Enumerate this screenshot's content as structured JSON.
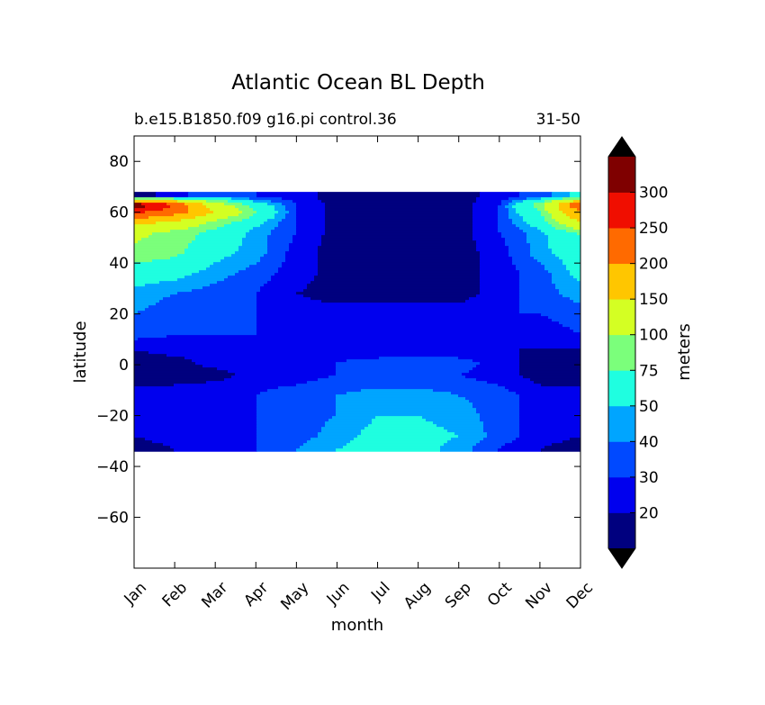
{
  "chart_data": {
    "type": "contourf",
    "title": "Atlantic Ocean BL Depth",
    "subtitle_left": "b.e15.B1850.f09 g16.pi control.36",
    "subtitle_right": "31-50",
    "xlabel": "month",
    "ylabel": "latitude",
    "x": [
      "Jan",
      "Feb",
      "Mar",
      "Apr",
      "May",
      "Jun",
      "Jul",
      "Aug",
      "Sep",
      "Oct",
      "Nov",
      "Dec"
    ],
    "y_ticks": [
      80,
      60,
      40,
      20,
      0,
      -20,
      -40,
      -60
    ],
    "ylim": [
      -80,
      90
    ],
    "data_lat_range": [
      -34,
      68
    ],
    "grid": false,
    "colorbar": {
      "label": "meters",
      "placement": "right",
      "extend": "both",
      "levels": [
        10,
        20,
        30,
        40,
        50,
        75,
        100,
        150,
        200,
        250,
        300,
        350
      ],
      "tick_labels": [
        "20",
        "30",
        "40",
        "50",
        "75",
        "100",
        "150",
        "200",
        "250",
        "300"
      ],
      "colors": [
        "#00007f",
        "#0000ee",
        "#0049ff",
        "#00a5ff",
        "#1ffee0",
        "#7bff7b",
        "#d4ff23",
        "#ffc600",
        "#ff6a00",
        "#f00e00",
        "#7f0000"
      ],
      "under_color": "#000000",
      "over_color": "#000000"
    },
    "bands": [
      {
        "lat": 66,
        "values": [
          15,
          25,
          40,
          30,
          25,
          15,
          15,
          15,
          15,
          25,
          35,
          55
        ]
      },
      {
        "lat": 63,
        "values": [
          340,
          250,
          120,
          60,
          30,
          15,
          15,
          15,
          15,
          30,
          90,
          250
        ]
      },
      {
        "lat": 60,
        "values": [
          260,
          220,
          150,
          75,
          30,
          15,
          15,
          15,
          15,
          30,
          75,
          200
        ]
      },
      {
        "lat": 56,
        "values": [
          170,
          140,
          90,
          55,
          30,
          15,
          15,
          15,
          15,
          30,
          60,
          150
        ]
      },
      {
        "lat": 52,
        "values": [
          110,
          90,
          65,
          45,
          30,
          15,
          15,
          15,
          15,
          30,
          45,
          80
        ]
      },
      {
        "lat": 44,
        "values": [
          90,
          80,
          55,
          45,
          25,
          15,
          15,
          15,
          15,
          25,
          45,
          60
        ]
      },
      {
        "lat": 36,
        "values": [
          60,
          55,
          45,
          35,
          25,
          15,
          15,
          15,
          15,
          25,
          35,
          55
        ]
      },
      {
        "lat": 28,
        "values": [
          45,
          40,
          35,
          30,
          20,
          15,
          15,
          15,
          15,
          25,
          35,
          45
        ]
      },
      {
        "lat": 20,
        "values": [
          40,
          35,
          35,
          30,
          25,
          25,
          25,
          25,
          25,
          30,
          30,
          35
        ]
      },
      {
        "lat": 12,
        "values": [
          35,
          30,
          30,
          30,
          25,
          25,
          25,
          25,
          25,
          25,
          25,
          30
        ]
      },
      {
        "lat": 6,
        "values": [
          20,
          25,
          25,
          25,
          25,
          20,
          20,
          20,
          20,
          20,
          20,
          20
        ]
      },
      {
        "lat": 1,
        "values": [
          15,
          15,
          25,
          30,
          30,
          30,
          35,
          35,
          35,
          25,
          15,
          15
        ]
      },
      {
        "lat": -4,
        "values": [
          15,
          15,
          15,
          25,
          25,
          30,
          30,
          30,
          30,
          25,
          15,
          15
        ]
      },
      {
        "lat": -12,
        "values": [
          25,
          25,
          30,
          30,
          35,
          40,
          45,
          45,
          40,
          35,
          25,
          25
        ]
      },
      {
        "lat": -20,
        "values": [
          25,
          25,
          25,
          30,
          35,
          40,
          50,
          50,
          45,
          35,
          25,
          25
        ]
      },
      {
        "lat": -28,
        "values": [
          20,
          25,
          25,
          30,
          35,
          45,
          55,
          55,
          50,
          35,
          25,
          20
        ]
      },
      {
        "lat": -33,
        "values": [
          15,
          20,
          25,
          30,
          40,
          50,
          55,
          55,
          45,
          30,
          20,
          15
        ]
      }
    ]
  }
}
